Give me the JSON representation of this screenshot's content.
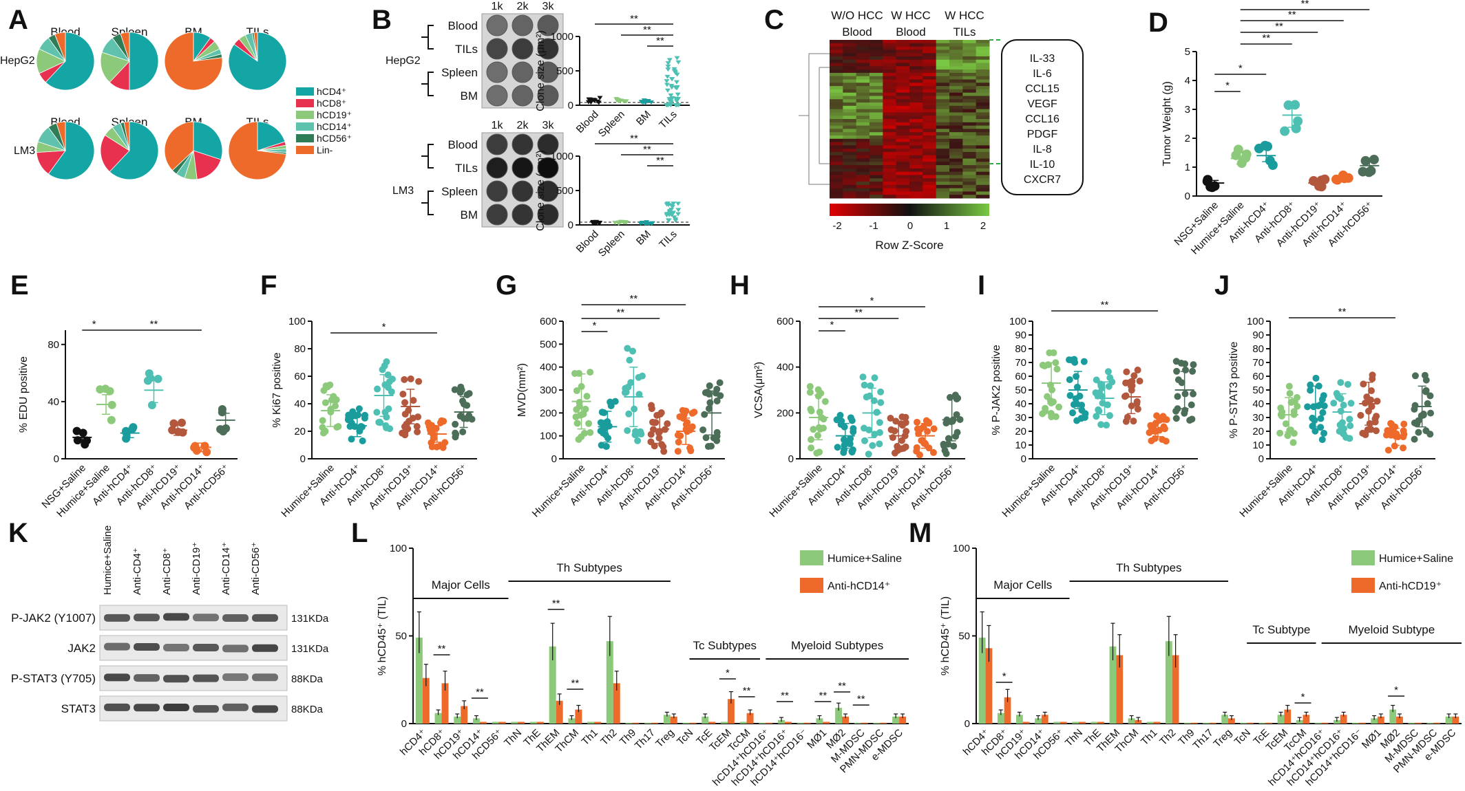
{
  "colors": {
    "hCD4": "#14a6a4",
    "hCD8": "#e8304f",
    "hCD19": "#8cc97a",
    "hCD14": "#5fc2ad",
    "hCD56": "#2e7d57",
    "Lin": "#ee6a2a",
    "saline": "#8cc97a",
    "antiCD4": "#1a9c9c",
    "antiCD8": "#4ec0b3",
    "antiCD19": "#b3573d",
    "antiCD14": "#ee6a2a",
    "antiCD56": "#4c6e58",
    "nsg": "#111111",
    "heatRed": "#cc1a1a",
    "heatGreen": "#7ac943"
  },
  "panelA": {
    "label": "A",
    "columns": [
      "Blood",
      "Spleen",
      "BM",
      "TILs"
    ],
    "rows": [
      "HepG2",
      "LM3"
    ],
    "legend": [
      "hCD4⁺",
      "hCD8⁺",
      "hCD19⁺",
      "hCD14⁺",
      "hCD56⁺",
      "Lin-"
    ],
    "pies": [
      [
        [
          62,
          6,
          14,
          8,
          4,
          6
        ],
        [
          50,
          12,
          18,
          10,
          5,
          5
        ],
        [
          10,
          3,
          5,
          3,
          2,
          77
        ],
        [
          85,
          4,
          4,
          4,
          1,
          2
        ]
      ],
      [
        [
          60,
          14,
          6,
          10,
          5,
          5
        ],
        [
          62,
          22,
          6,
          5,
          2,
          3
        ],
        [
          30,
          18,
          7,
          5,
          3,
          37
        ],
        [
          20,
          2,
          2,
          2,
          1,
          73
        ]
      ]
    ]
  },
  "panelB": {
    "label": "B",
    "plate_cols": [
      "1k",
      "2k",
      "3k"
    ],
    "plate_rows": [
      "Blood",
      "TILs",
      "Spleen",
      "BM"
    ],
    "top_label": "HepG2",
    "bottom_label": "LM3",
    "ylabel": "Clone size (μm²)",
    "top_yticks": [
      "0",
      "500",
      "1000"
    ],
    "bottom_yticks": [
      "0",
      "500",
      "1000"
    ],
    "xcats": [
      "Blood",
      "Spleen",
      "BM",
      "TILs"
    ],
    "sig": [
      "**",
      "**",
      "**"
    ]
  },
  "panelC": {
    "label": "C",
    "col_headers": [
      "W/O HCC",
      "Blood",
      "W HCC",
      "Blood",
      "W HCC",
      "TILs"
    ],
    "genes": [
      "IL-33",
      "IL-6",
      "CCL15",
      "VEGF",
      "CCL16",
      "PDGF",
      "IL-8",
      "IL-10",
      "CXCR7"
    ],
    "scale_ticks": [
      "-2",
      "-1",
      "0",
      "1",
      "2"
    ],
    "scale_title": "Row Z-Score"
  },
  "panelD": {
    "label": "D",
    "ylabel": "Tumor Weight (g)",
    "yticks": [
      "0",
      "1",
      "2",
      "3",
      "4",
      "5"
    ],
    "groups": [
      "NSG+Saline",
      "Humice+Saline",
      "Anti-hCD4⁺",
      "Anti-hCD8⁺",
      "Anti-hCD19⁺",
      "Anti-hCD14⁺",
      "Anti-hCD56⁺"
    ],
    "means": [
      0.45,
      1.3,
      1.4,
      2.8,
      0.45,
      0.6,
      1.05
    ],
    "sig": [
      "**",
      "**",
      "**",
      "**",
      "*",
      "*"
    ]
  },
  "panelE": {
    "label": "E",
    "ylabel": "% EDU positive",
    "yticks": [
      "0",
      "40",
      "80"
    ],
    "groups": [
      "NSG+Saline",
      "Humice+Saline",
      "Anti-hCD4⁺",
      "Anti-hCD8⁺",
      "Anti-hCD19⁺",
      "Anti-hCD14⁺",
      "Anti-hCD56⁺"
    ],
    "means": [
      15,
      38,
      18,
      48,
      20,
      8,
      27
    ],
    "sig": [
      "*",
      "**"
    ]
  },
  "panelF": {
    "label": "F",
    "ylabel": "% Ki67 positive",
    "yticks": [
      "0",
      "20",
      "40",
      "60",
      "80",
      "100"
    ],
    "groups": [
      "Humice+Saline",
      "Anti-hCD4⁺",
      "Anti-hCD8⁺",
      "Anti-hCD19⁺",
      "Anti-hCD14⁺",
      "Anti-hCD56⁺"
    ],
    "means": [
      35,
      24,
      46,
      38,
      18,
      34
    ],
    "sig": [
      "*"
    ]
  },
  "panelG": {
    "label": "G",
    "ylabel": "MVD(mm²)",
    "yticks": [
      "0",
      "100",
      "200",
      "300",
      "400",
      "500",
      "600"
    ],
    "groups": [
      "Humice+Saline",
      "Anti-hCD4⁺",
      "Anti-hCD8⁺",
      "Anti-hCD19⁺",
      "Anti-hCD14⁺",
      "Anti-hCD56⁺"
    ],
    "means": [
      250,
      140,
      270,
      130,
      120,
      200
    ],
    "sig": [
      "*",
      "**",
      "**"
    ]
  },
  "panelH": {
    "label": "H",
    "ylabel": "VCSA(μm²)",
    "yticks": [
      "0",
      "200",
      "400",
      "600"
    ],
    "groups": [
      "Humice+Saline",
      "Anti-hCD4⁺",
      "Anti-hCD8⁺",
      "Anti-hCD19⁺",
      "Anti-hCD14⁺",
      "Anti-hCD56⁺"
    ],
    "means": [
      180,
      100,
      200,
      100,
      100,
      170
    ],
    "sig": [
      "*",
      "**",
      "*"
    ]
  },
  "panelI": {
    "label": "I",
    "ylabel": "% P-JAK2 positive",
    "yticks": [
      "0",
      "10",
      "20",
      "30",
      "40",
      "50",
      "60",
      "70",
      "80",
      "90",
      "100"
    ],
    "groups": [
      "Humice+Saline",
      "Anti-hCD4⁺",
      "Anti-hCD8⁺",
      "Anti-hCD19⁺",
      "Anti-hCD14⁺",
      "Anti-hCD56⁺"
    ],
    "means": [
      55,
      50,
      44,
      45,
      22,
      50
    ],
    "sig": [
      "**"
    ]
  },
  "panelJ": {
    "label": "J",
    "ylabel": "% P-STAT3 positive",
    "yticks": [
      "0",
      "10",
      "20",
      "30",
      "40",
      "50",
      "60",
      "70",
      "80",
      "90",
      "100"
    ],
    "groups": [
      "Humice+Saline",
      "Anti-hCD4⁺",
      "Anti-hCD8⁺",
      "Anti-hCD19⁺",
      "Anti-hCD14⁺",
      "Anti-hCD56⁺"
    ],
    "means": [
      32,
      38,
      34,
      40,
      16,
      38
    ],
    "sig": [
      "**"
    ]
  },
  "panelK": {
    "label": "K",
    "lanes": [
      "Humice+Saline",
      "Anti-CD4⁺",
      "Anti-CD8⁺",
      "Anti-CD19⁺",
      "Anti-CD14⁺",
      "Anti-CD56⁺"
    ],
    "blots": [
      {
        "name": "P-JAK2 (Y1007)",
        "kda": "131KDa"
      },
      {
        "name": "JAK2",
        "kda": "131KDa"
      },
      {
        "name": "P-STAT3 (Y705)",
        "kda": "88KDa"
      },
      {
        "name": "STAT3",
        "kda": "88KDa"
      }
    ]
  },
  "panelL": {
    "label": "L",
    "ylabel": "% hCD45⁺ (TIL)",
    "yticks": [
      "0",
      "50",
      "100"
    ],
    "legend": [
      "Humice+Saline",
      "Anti-hCD14⁺"
    ],
    "brackets": [
      "Major Cells",
      "Th Subtypes",
      "Tc Subtypes",
      "Myeloid Subtypes"
    ],
    "cats": [
      "hCD4⁺",
      "hCD8⁺",
      "hCD19⁺",
      "hCD14⁺",
      "hCD56⁺",
      "ThN",
      "ThE",
      "ThEM",
      "ThCM",
      "Th1",
      "Th2",
      "Th9",
      "Th17",
      "Treg",
      "TcN",
      "TcE",
      "TcEM",
      "TcCM",
      "hCD14⁺hCD16⁺",
      "hCD14⁺hCD16⁺",
      "hCD14⁺hCD16⁻",
      "MØ1",
      "MØ2",
      "M-MDSC",
      "PMN-MDSC",
      "e-MDSC"
    ],
    "series": [
      {
        "name": "Humice+Saline",
        "values": [
          49,
          6,
          4,
          3,
          1,
          1,
          1,
          44,
          3,
          1,
          47,
          0.5,
          0.5,
          5,
          0.5,
          4,
          1,
          1,
          0.5,
          2,
          0.5,
          3,
          9,
          0.5,
          0.5,
          4
        ]
      },
      {
        "name": "Anti-hCD14⁺",
        "values": [
          26,
          23,
          10,
          1,
          1,
          1,
          1,
          13,
          8,
          1,
          23,
          0.5,
          0.5,
          4,
          0.5,
          1,
          14,
          6,
          0.5,
          1,
          0.5,
          1,
          4,
          0.5,
          0.5,
          4
        ]
      }
    ]
  },
  "panelM": {
    "label": "M",
    "ylabel": "% hCD45⁺ (TIL)",
    "yticks": [
      "0",
      "50",
      "100"
    ],
    "legend": [
      "Humice+Saline",
      "Anti-hCD19⁺"
    ],
    "brackets": [
      "Major Cells",
      "Th Subtypes",
      "Tc Subtype",
      "Myeloid Subtype"
    ],
    "cats": [
      "hCD4⁺",
      "hCD8⁺",
      "hCD19⁺",
      "hCD14⁺",
      "hCD56⁺",
      "ThN",
      "ThE",
      "ThEM",
      "ThCM",
      "Th1",
      "Th2",
      "Th9",
      "Th17",
      "Treg",
      "TcN",
      "TcE",
      "TcEM",
      "TcCM",
      "hCD14⁺hCD16⁺",
      "hCD14⁺hCD16⁺",
      "hCD14⁺hCD16⁻",
      "MØ1",
      "MØ2",
      "M-MDSC",
      "PMN-MDSC",
      "e-MDSC"
    ],
    "series": [
      {
        "name": "Humice+Saline",
        "values": [
          49,
          6,
          5,
          3,
          1,
          1,
          1,
          44,
          3,
          1,
          47,
          0.5,
          0.5,
          5,
          0.5,
          0.5,
          5,
          2,
          0.5,
          2,
          0.5,
          3,
          8,
          0.5,
          0.5,
          4
        ]
      },
      {
        "name": "Anti-hCD19⁺",
        "values": [
          43,
          15,
          1,
          5,
          1,
          1,
          1,
          39,
          2,
          1,
          39,
          0.5,
          0.5,
          3,
          0.5,
          0.5,
          8,
          5,
          0.5,
          5,
          0.5,
          4,
          4,
          0.5,
          0.5,
          4
        ]
      }
    ]
  }
}
